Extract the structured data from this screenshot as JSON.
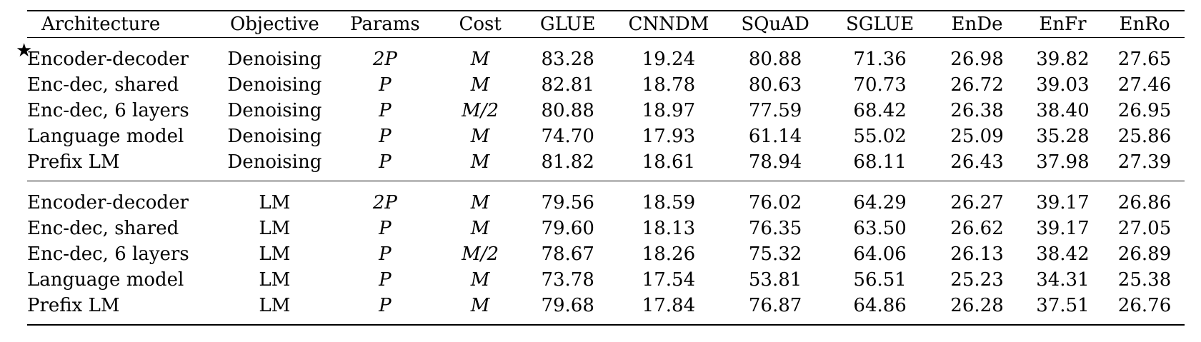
{
  "table": {
    "headers": [
      "Architecture",
      "Objective",
      "Params",
      "Cost",
      "GLUE",
      "CNNDM",
      "SQuAD",
      "SGLUE",
      "EnDe",
      "EnFr",
      "EnRo"
    ],
    "star_symbol": "★",
    "blocks": [
      {
        "rows": [
          {
            "starred": true,
            "architecture": "Encoder-decoder",
            "objective": "Denoising",
            "params": "2P",
            "cost": "M",
            "values": [
              "83.28",
              "19.24",
              "80.88",
              "71.36",
              "26.98",
              "39.82",
              "27.65"
            ],
            "bold": [
              true,
              true,
              true,
              true,
              true,
              true,
              true
            ]
          },
          {
            "starred": false,
            "architecture": "Enc-dec, shared",
            "objective": "Denoising",
            "params": "P",
            "cost": "M",
            "values": [
              "82.81",
              "18.78",
              "80.63",
              "70.73",
              "26.72",
              "39.03",
              "27.46"
            ],
            "bold": [
              false,
              false,
              true,
              true,
              false,
              false,
              true
            ]
          },
          {
            "starred": false,
            "architecture": "Enc-dec, 6 layers",
            "objective": "Denoising",
            "params": "P",
            "cost": "M/2",
            "values": [
              "80.88",
              "18.97",
              "77.59",
              "68.42",
              "26.38",
              "38.40",
              "26.95"
            ],
            "bold": [
              false,
              false,
              false,
              false,
              false,
              false,
              false
            ]
          },
          {
            "starred": false,
            "architecture": "Language model",
            "objective": "Denoising",
            "params": "P",
            "cost": "M",
            "values": [
              "74.70",
              "17.93",
              "61.14",
              "55.02",
              "25.09",
              "35.28",
              "25.86"
            ],
            "bold": [
              false,
              false,
              false,
              false,
              false,
              false,
              false
            ]
          },
          {
            "starred": false,
            "architecture": "Prefix LM",
            "objective": "Denoising",
            "params": "P",
            "cost": "M",
            "values": [
              "81.82",
              "18.61",
              "78.94",
              "68.11",
              "26.43",
              "37.98",
              "27.39"
            ],
            "bold": [
              false,
              false,
              false,
              false,
              false,
              false,
              false
            ]
          }
        ]
      },
      {
        "rows": [
          {
            "starred": false,
            "architecture": "Encoder-decoder",
            "objective": "LM",
            "params": "2P",
            "cost": "M",
            "values": [
              "79.56",
              "18.59",
              "76.02",
              "64.29",
              "26.27",
              "39.17",
              "26.86"
            ],
            "bold": [
              false,
              false,
              false,
              false,
              false,
              false,
              false
            ]
          },
          {
            "starred": false,
            "architecture": "Enc-dec, shared",
            "objective": "LM",
            "params": "P",
            "cost": "M",
            "values": [
              "79.60",
              "18.13",
              "76.35",
              "63.50",
              "26.62",
              "39.17",
              "27.05"
            ],
            "bold": [
              false,
              false,
              false,
              false,
              false,
              false,
              false
            ]
          },
          {
            "starred": false,
            "architecture": "Enc-dec, 6 layers",
            "objective": "LM",
            "params": "P",
            "cost": "M/2",
            "values": [
              "78.67",
              "18.26",
              "75.32",
              "64.06",
              "26.13",
              "38.42",
              "26.89"
            ],
            "bold": [
              false,
              false,
              false,
              false,
              false,
              false,
              false
            ]
          },
          {
            "starred": false,
            "architecture": "Language model",
            "objective": "LM",
            "params": "P",
            "cost": "M",
            "values": [
              "73.78",
              "17.54",
              "53.81",
              "56.51",
              "25.23",
              "34.31",
              "25.38"
            ],
            "bold": [
              false,
              false,
              false,
              false,
              false,
              false,
              false
            ]
          },
          {
            "starred": false,
            "architecture": "Prefix LM",
            "objective": "LM",
            "params": "P",
            "cost": "M",
            "values": [
              "79.68",
              "17.84",
              "76.87",
              "64.86",
              "26.28",
              "37.51",
              "26.76"
            ],
            "bold": [
              false,
              false,
              false,
              false,
              false,
              false,
              false
            ]
          }
        ]
      }
    ]
  }
}
